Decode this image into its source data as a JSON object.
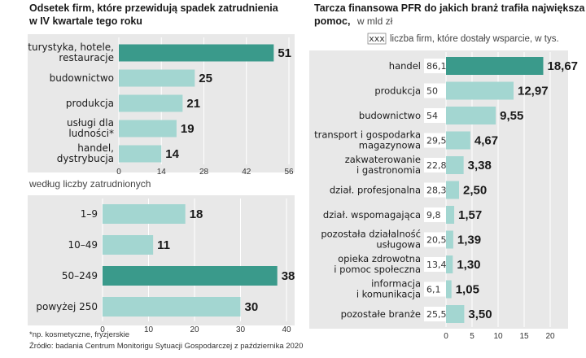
{
  "colors": {
    "panel": "#e8e8e8",
    "bar": "#a3d6d1",
    "highlight": "#3a9a8b",
    "countBox": "#ffffff"
  },
  "left_title_lines": [
    "Odsetek firm, które przewidują spadek zatrudnienia",
    "w IV kwartale tego roku"
  ],
  "right_title_lines": [
    "Tarcza finansowa PFR do jakich branż trafiła największa",
    "pomoc,"
  ],
  "right_title_unit": "w mld zł",
  "legend": {
    "box_text": "xxx",
    "text": "liczba firm, które dostały wsparcie, w tys."
  },
  "middle_label": "według liczby zatrudnionych",
  "footnote": "*np. kosmetyczne, fryzjerskie",
  "source": "Źródło: badania Centrum Monitorigu Sytuacji Gospodarczej z października 2020",
  "chart_data": [
    {
      "type": "bar",
      "orientation": "horizontal",
      "categories": [
        [
          "turystyka, hotele,",
          "restauracje"
        ],
        [
          "budownictwo"
        ],
        [
          "produkcja"
        ],
        [
          "usługi dla",
          "ludności*"
        ],
        [
          "handel,",
          "dystrybucja"
        ]
      ],
      "values": [
        51,
        25,
        21,
        19,
        14
      ],
      "value_labels": [
        "51",
        "25",
        "21",
        "19",
        "14"
      ],
      "highlight_index": 0,
      "xlim": [
        0,
        56
      ],
      "xticks": [
        "0",
        "14",
        "28",
        "42",
        "56"
      ],
      "grid": true
    },
    {
      "type": "bar",
      "orientation": "horizontal",
      "categories": [
        [
          "1–9"
        ],
        [
          "10–49"
        ],
        [
          "50–249"
        ],
        [
          "powyżej 250"
        ]
      ],
      "values": [
        18,
        11,
        38,
        30
      ],
      "value_labels": [
        "18",
        "11",
        "38",
        "30"
      ],
      "highlight_index": 2,
      "xlim": [
        0,
        40
      ],
      "xticks": [
        "0",
        "10",
        "20",
        "30",
        "40"
      ],
      "grid": true
    },
    {
      "type": "bar",
      "orientation": "horizontal",
      "categories": [
        [
          "handel"
        ],
        [
          "produkcja"
        ],
        [
          "budownictwo"
        ],
        [
          "transport i gospodarka",
          "magazynowa"
        ],
        [
          "zakwaterowanie",
          "i gastronomia"
        ],
        [
          "dział. profesjonalna"
        ],
        [
          "dział. wspomagająca"
        ],
        [
          "pozostała działalność",
          "usługowa"
        ],
        [
          "opieka zdrowotna",
          "i pomoc społeczna"
        ],
        [
          "informacja",
          "i komunikacja"
        ],
        [
          "pozostałe branże"
        ]
      ],
      "values": [
        18.67,
        12.97,
        9.55,
        4.67,
        3.38,
        2.5,
        1.57,
        1.39,
        1.3,
        1.05,
        3.5
      ],
      "value_labels": [
        "18,67",
        "12,97",
        "9,55",
        "4,67",
        "3,38",
        "2,50",
        "1,57",
        "1,39",
        "1,30",
        "1,05",
        "3,50"
      ],
      "firm_counts": [
        "86,1",
        "50",
        "54",
        "29,5",
        "22,8",
        "28,3",
        "9,8",
        "20,5",
        "13,4",
        "6,1",
        "25,5"
      ],
      "highlight_index": 0,
      "xlim": [
        0,
        20
      ],
      "xticks": [
        "0",
        "5",
        "10",
        "15",
        "20"
      ],
      "grid": true
    }
  ]
}
